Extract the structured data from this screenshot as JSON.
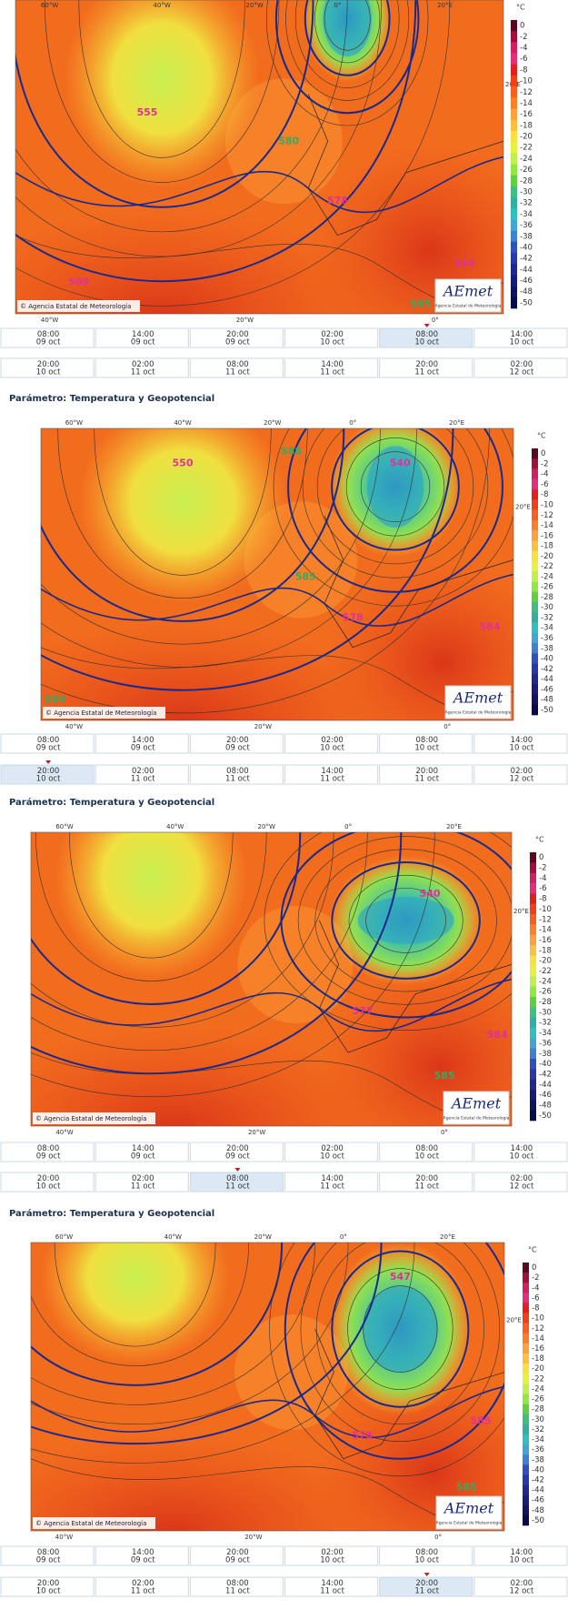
{
  "map_axes": {
    "top": [
      "60°W",
      "40°W",
      "20°W",
      "0°",
      "20°E"
    ],
    "right": "20°E",
    "bottom": [
      "40°W",
      "20°W",
      "0°"
    ]
  },
  "credit": "© Agencia Estatal de Meteorología",
  "logo": "AEmet",
  "logo_caption": "Agencia Estatal de Meteorología",
  "legend": {
    "unit": "°C",
    "labels": [
      "0",
      "-2",
      "-4",
      "-6",
      "-8",
      "-10",
      "-12",
      "-14",
      "-16",
      "-18",
      "-20",
      "-22",
      "-24",
      "-26",
      "-28",
      "-30",
      "-32",
      "-34",
      "-36",
      "-38",
      "-40",
      "-42",
      "-44",
      "-46",
      "-48",
      "-50"
    ],
    "colors": [
      "#5a0a20",
      "#a0103a",
      "#d02060",
      "#e0307a",
      "#e02020",
      "#f04018",
      "#f86020",
      "#fa8028",
      "#fca040",
      "#fcc040",
      "#f8e040",
      "#e8f040",
      "#c0f050",
      "#90e840",
      "#60d040",
      "#40c080",
      "#30b0a0",
      "#30c0c0",
      "#40a8d0",
      "#4080d0",
      "#3050c0",
      "#2838a8",
      "#202890",
      "#181c78",
      "#101460",
      "#0a0a48"
    ]
  },
  "panels": [
    {
      "centers": [
        {
          "text": "555",
          "color": "#e0309a"
        },
        {
          "text": "580",
          "color": "#3aa860"
        },
        {
          "text": "578",
          "color": "#e0309a"
        },
        {
          "text": "584",
          "color": "#e0309a"
        },
        {
          "text": "589",
          "color": "#e0309a"
        },
        {
          "text": "585",
          "color": "#3aa860"
        }
      ],
      "timeline": [
        {
          "time": "08:00",
          "date": "09 oct"
        },
        {
          "time": "14:00",
          "date": "09 oct"
        },
        {
          "time": "20:00",
          "date": "09 oct"
        },
        {
          "time": "02:00",
          "date": "10 oct"
        },
        {
          "time": "08:00",
          "date": "10 oct",
          "selected": true
        },
        {
          "time": "14:00",
          "date": "10 oct"
        },
        {
          "time": "20:00",
          "date": "10 oct"
        },
        {
          "time": "02:00",
          "date": "11 oct"
        },
        {
          "time": "08:00",
          "date": "11 oct"
        },
        {
          "time": "14:00",
          "date": "11 oct"
        },
        {
          "time": "20:00",
          "date": "11 oct"
        },
        {
          "time": "02:00",
          "date": "12 oct"
        }
      ]
    },
    {
      "heading": "Parámetro: Temperatura y Geopotencial",
      "centers": [
        {
          "text": "550",
          "color": "#e0309a"
        },
        {
          "text": "588",
          "color": "#3aa860"
        },
        {
          "text": "540",
          "color": "#e0309a"
        },
        {
          "text": "585",
          "color": "#3aa860"
        },
        {
          "text": "578",
          "color": "#e0309a"
        },
        {
          "text": "584",
          "color": "#e0309a"
        },
        {
          "text": "589",
          "color": "#3aa860"
        }
      ],
      "timeline": [
        {
          "time": "08:00",
          "date": "09 oct"
        },
        {
          "time": "14:00",
          "date": "09 oct"
        },
        {
          "time": "20:00",
          "date": "09 oct"
        },
        {
          "time": "02:00",
          "date": "10 oct"
        },
        {
          "time": "08:00",
          "date": "10 oct"
        },
        {
          "time": "14:00",
          "date": "10 oct"
        },
        {
          "time": "20:00",
          "date": "10 oct",
          "selected": true
        },
        {
          "time": "02:00",
          "date": "11 oct"
        },
        {
          "time": "08:00",
          "date": "11 oct"
        },
        {
          "time": "14:00",
          "date": "11 oct"
        },
        {
          "time": "20:00",
          "date": "11 oct"
        },
        {
          "time": "02:00",
          "date": "12 oct"
        }
      ]
    },
    {
      "heading": "Parámetro: Temperatura y Geopotencial",
      "centers": [
        {
          "text": "540",
          "color": "#e0309a"
        },
        {
          "text": "577",
          "color": "#e0309a"
        },
        {
          "text": "584",
          "color": "#e0309a"
        },
        {
          "text": "585",
          "color": "#3aa860"
        }
      ],
      "timeline": [
        {
          "time": "08:00",
          "date": "09 oct"
        },
        {
          "time": "14:00",
          "date": "09 oct"
        },
        {
          "time": "20:00",
          "date": "09 oct"
        },
        {
          "time": "02:00",
          "date": "10 oct"
        },
        {
          "time": "08:00",
          "date": "10 oct"
        },
        {
          "time": "14:00",
          "date": "10 oct"
        },
        {
          "time": "20:00",
          "date": "10 oct"
        },
        {
          "time": "02:00",
          "date": "11 oct"
        },
        {
          "time": "08:00",
          "date": "11 oct",
          "selected": true
        },
        {
          "time": "14:00",
          "date": "11 oct"
        },
        {
          "time": "20:00",
          "date": "11 oct"
        },
        {
          "time": "02:00",
          "date": "12 oct"
        }
      ]
    },
    {
      "heading": "Parámetro: Temperatura y Geopotencial",
      "centers": [
        {
          "text": "547",
          "color": "#e0309a"
        },
        {
          "text": "578",
          "color": "#e0309a"
        },
        {
          "text": "585",
          "color": "#e0309a"
        },
        {
          "text": "585",
          "color": "#3aa860"
        }
      ],
      "timeline": [
        {
          "time": "08:00",
          "date": "09 oct"
        },
        {
          "time": "14:00",
          "date": "09 oct"
        },
        {
          "time": "20:00",
          "date": "09 oct"
        },
        {
          "time": "02:00",
          "date": "10 oct"
        },
        {
          "time": "08:00",
          "date": "10 oct"
        },
        {
          "time": "14:00",
          "date": "10 oct"
        },
        {
          "time": "20:00",
          "date": "10 oct"
        },
        {
          "time": "02:00",
          "date": "11 oct"
        },
        {
          "time": "08:00",
          "date": "11 oct"
        },
        {
          "time": "14:00",
          "date": "11 oct"
        },
        {
          "time": "20:00",
          "date": "11 oct",
          "selected": true
        },
        {
          "time": "02:00",
          "date": "12 oct"
        }
      ]
    }
  ]
}
